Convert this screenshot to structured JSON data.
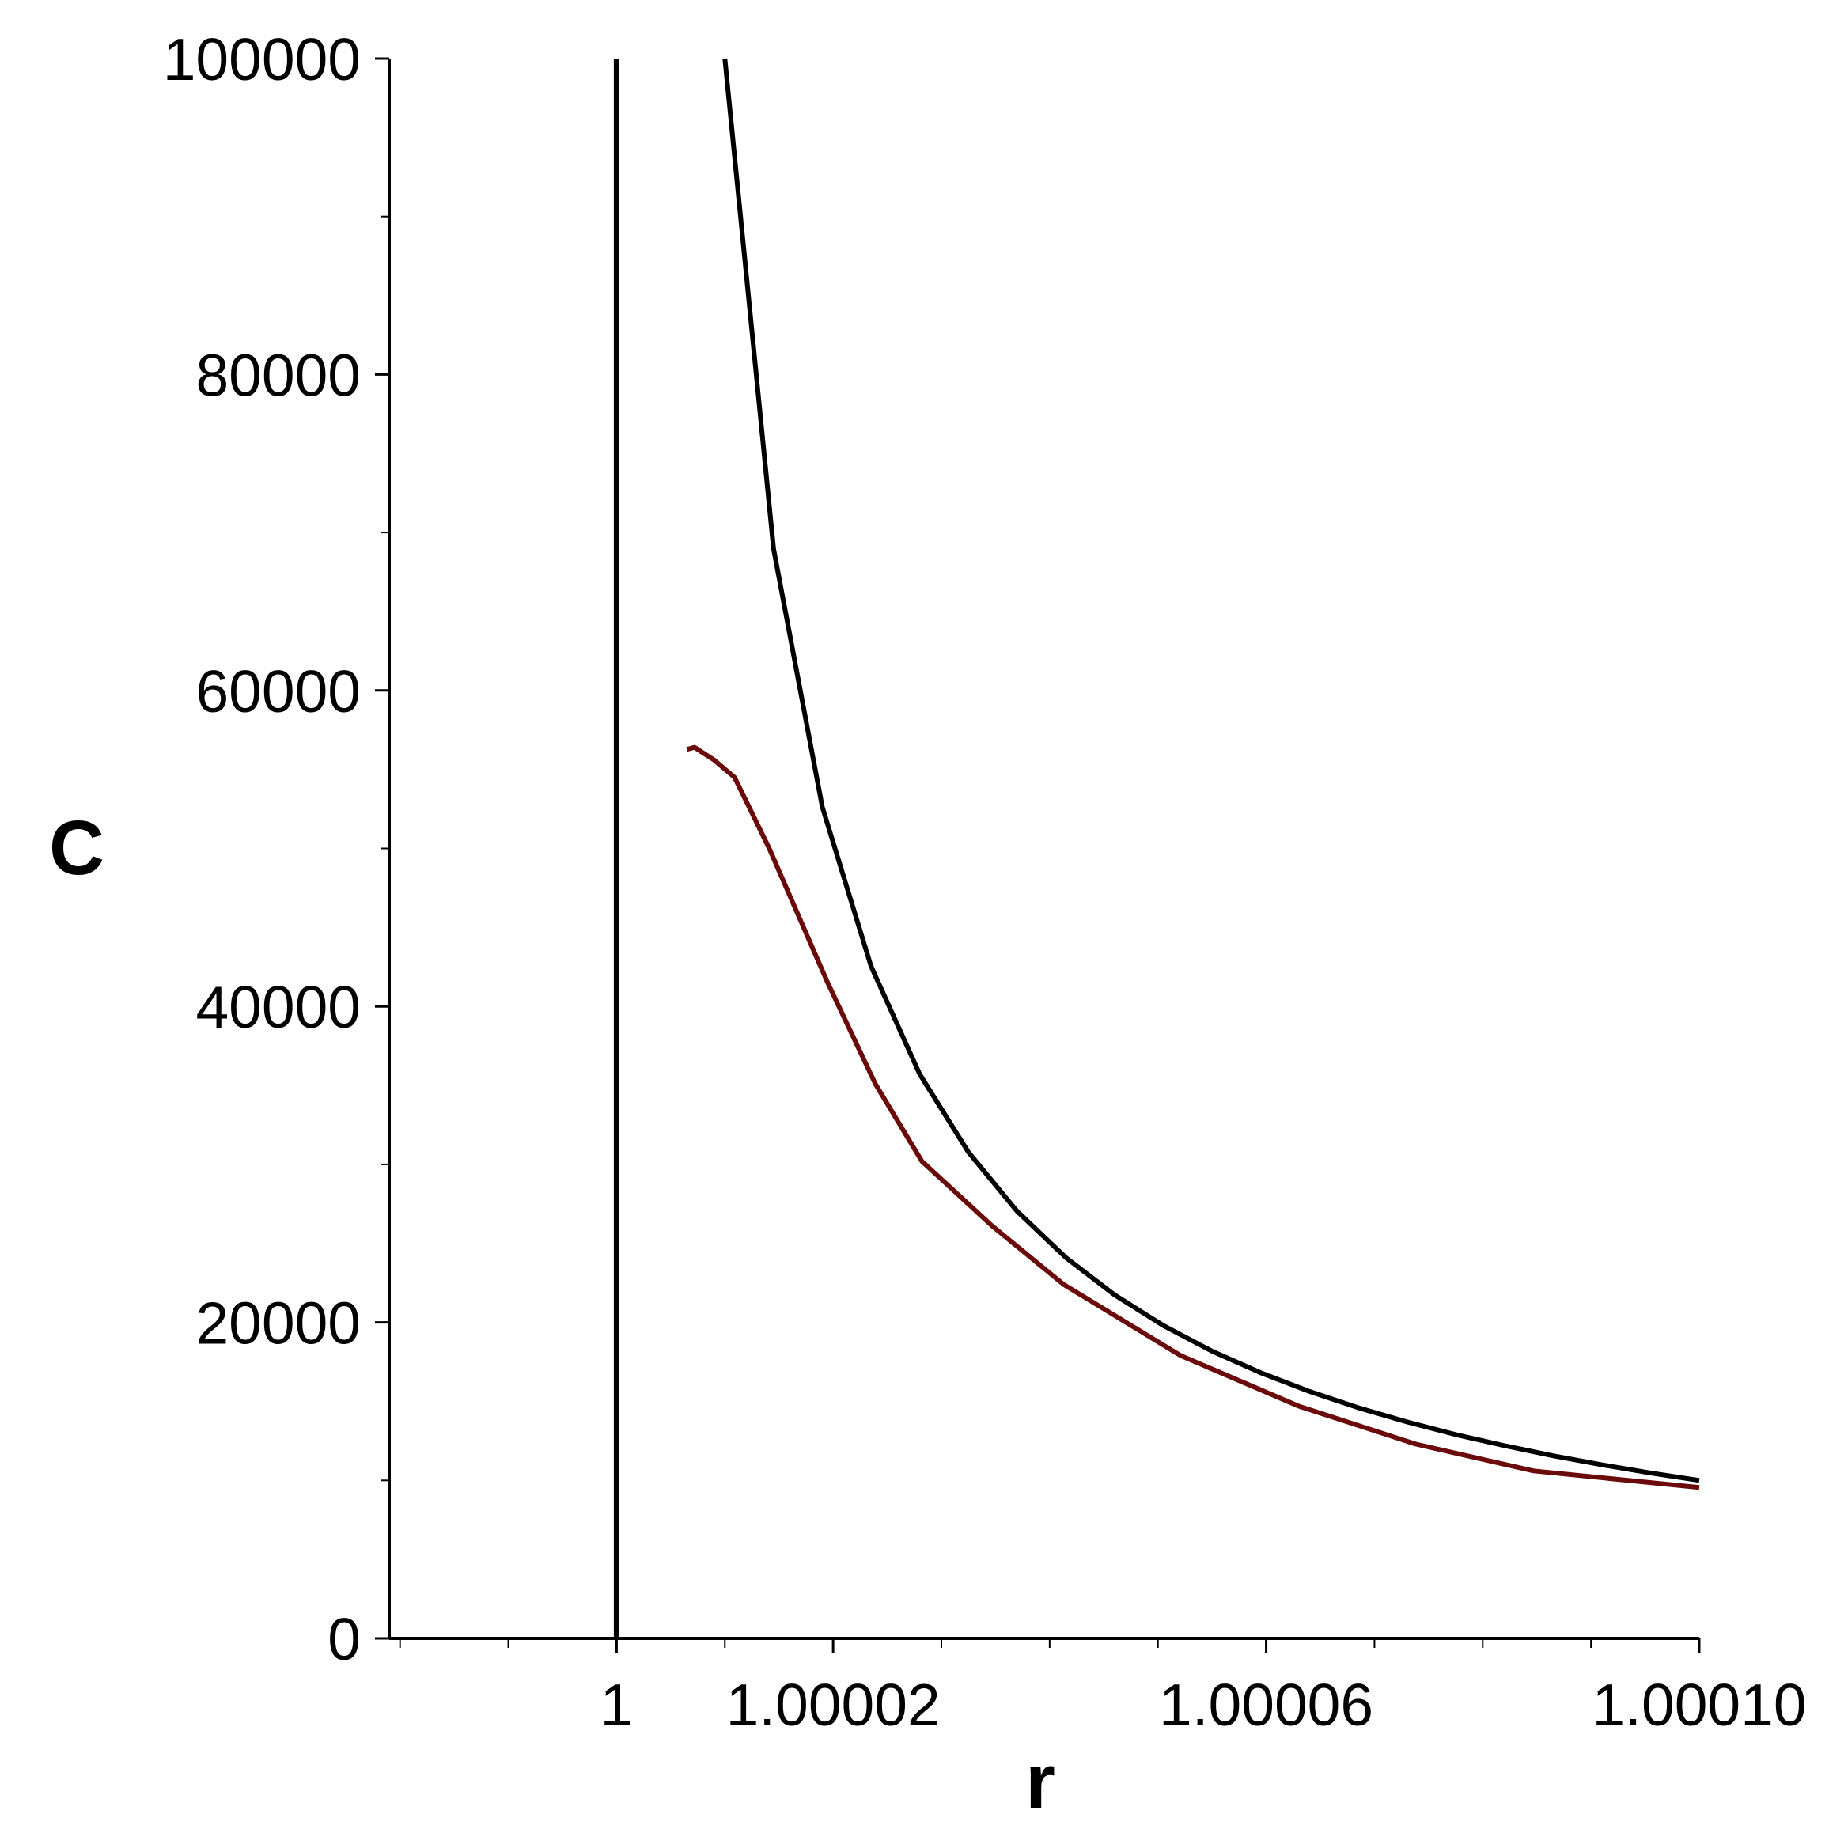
{
  "chart_data": {
    "type": "line",
    "xlabel": "r",
    "ylabel": "C",
    "xlim": [
      0.999979,
      1.0001
    ],
    "xticks": [
      1,
      1.00002,
      1.00006,
      {
        "value": 1.0001,
        "label": "1.00010"
      }
    ],
    "xminorticks": [
      0.99998,
      0.99999,
      1.00001,
      1.00003,
      1.00004,
      1.00005,
      1.00007,
      1.00008,
      1.00009
    ],
    "ylim": [
      0,
      100000
    ],
    "yticks": [
      0,
      20000,
      40000,
      60000,
      80000,
      100000
    ],
    "yminorticks": [
      10000,
      30000,
      50000,
      70000,
      90000
    ],
    "series": [
      {
        "color": "#000000",
        "x": [
          1,
          1
        ],
        "values": [
          0,
          100000
        ]
      },
      {
        "color": "#000000",
        "x": [
          1.00001,
          1.0000145,
          1.000019,
          1.0000235,
          1.000028,
          1.0000325,
          1.000037,
          1.0000415,
          1.000046,
          1.0000505,
          1.000055,
          1.0000595,
          1.000064,
          1.0000685,
          1.000073,
          1.0000775,
          1.000082,
          1.0000865,
          1.000091,
          1.0000955,
          1.0001
        ],
        "values": [
          100000,
          68970,
          52630,
          42550,
          35710,
          30770,
          27030,
          24100,
          21740,
          19800,
          18180,
          16810,
          15630,
          14600,
          13700,
          12900,
          12200,
          11560,
          10990,
          10470,
          10000
        ]
      },
      {
        "color": "#6b0a0a",
        "x": [
          1.0000065,
          1.0000072,
          1.000009,
          1.0000109,
          1.0000141,
          1.0000174,
          1.0000195,
          1.0000239,
          1.0000282,
          1.0000347,
          1.0000413,
          1.0000521,
          1.000063,
          1.0000738,
          1.0000847,
          1.0001
        ],
        "values": [
          56270,
          56400,
          55600,
          54500,
          50000,
          44800,
          41500,
          35100,
          30200,
          26100,
          22400,
          17900,
          14700,
          12300,
          10600,
          9550
        ]
      }
    ]
  }
}
